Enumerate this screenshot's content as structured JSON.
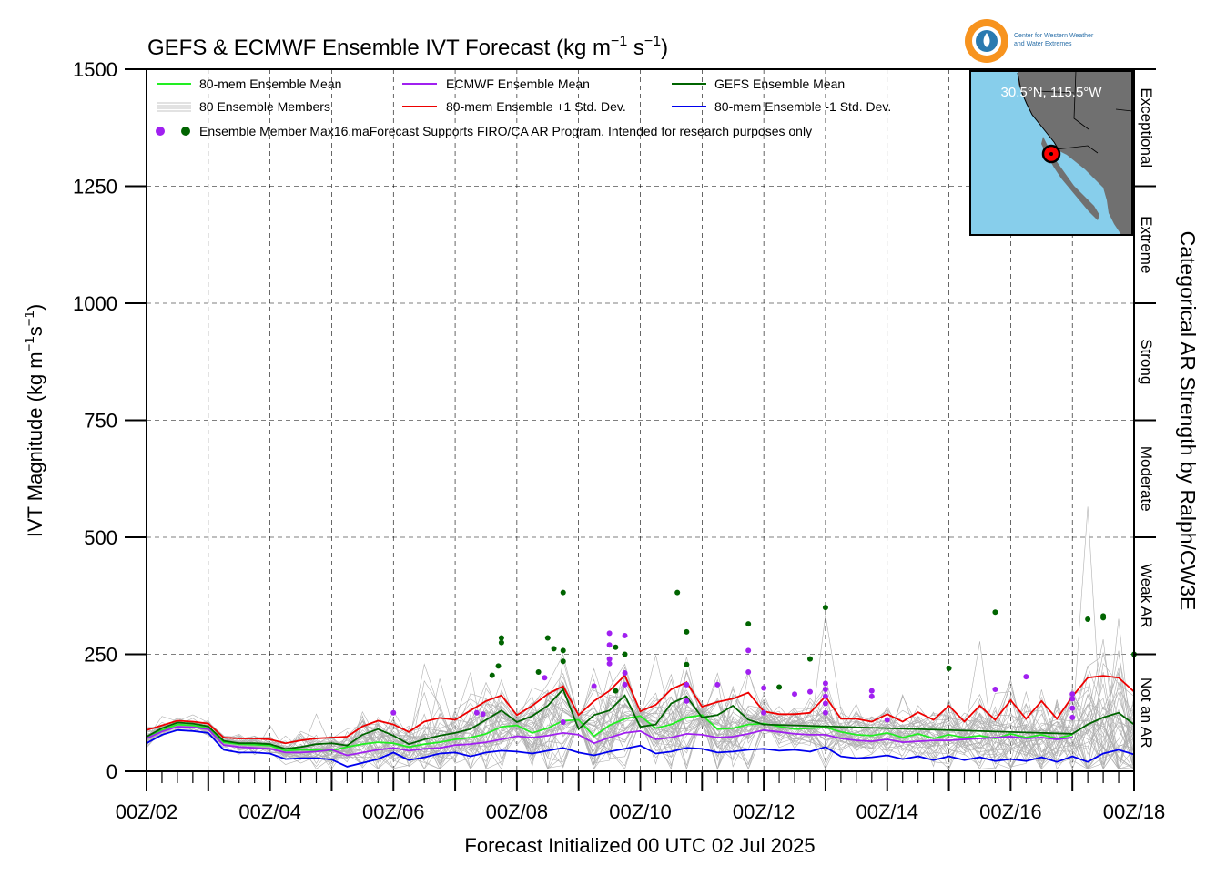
{
  "chart_data": {
    "type": "line",
    "title": "GEFS & ECMWF Ensemble IVT Forecast (kg m⁻¹ s⁻¹)",
    "title_parts": {
      "main": "GEFS & ECMWF Ensemble IVT Forecast (kg m",
      "sup1": "−1",
      "mid": " s",
      "sup2": "−1",
      "end": ")"
    },
    "ylabel": "IVT Magnitude (kg m⁻¹s⁻¹)",
    "ylabel_parts": {
      "main": "IVT Magnitude (kg m",
      "sup1": "−1",
      "mid": "s",
      "sup2": "−1",
      "end": ")"
    },
    "xlabel": "Forecast Initialized 00 UTC 02 Jul 2025",
    "right_label": "Categorical AR Strength by Ralph/CW3E",
    "ylim": [
      0,
      1500
    ],
    "xlim_days": [
      2,
      18
    ],
    "y_ticks": [
      0,
      250,
      500,
      750,
      1000,
      1250,
      1500
    ],
    "x_tick_labels": [
      "00Z/02",
      "00Z/04",
      "00Z/06",
      "00Z/08",
      "00Z/10",
      "00Z/12",
      "00Z/14",
      "00Z/16",
      "00Z/18"
    ],
    "x_tick_days": [
      2,
      4,
      6,
      8,
      10,
      12,
      14,
      16,
      18
    ],
    "grid": true,
    "categories": [
      {
        "label": "Not an AR",
        "from": 0,
        "to": 250
      },
      {
        "label": "Weak AR",
        "from": 250,
        "to": 500
      },
      {
        "label": "Moderate",
        "from": 500,
        "to": 750
      },
      {
        "label": "Strong",
        "from": 750,
        "to": 1000
      },
      {
        "label": "Extreme",
        "from": 1000,
        "to": 1250
      },
      {
        "label": "Exceptional",
        "from": 1250,
        "to": 1500
      }
    ],
    "legend": [
      {
        "label": "80-mem Ensemble Mean",
        "color": "#22ee22"
      },
      {
        "label": "ECMWF Ensemble Mean",
        "color": "#a020f0"
      },
      {
        "label": "GEFS Ensemble Mean",
        "color": "#006400"
      },
      {
        "label": "80 Ensemble Members",
        "color": "#b0b0b0"
      },
      {
        "label": "80-mem Ensemble +1 Std. Dev.",
        "color": "#ee0000"
      },
      {
        "label": "80-mem Ensemble -1 Std. Dev.",
        "color": "#0000ee"
      },
      {
        "label": "Ensemble Member Max",
        "color": "#006400"
      }
    ],
    "note": "16.maForecast Supports FIRO/CA AR Program. Intended for research purposes only",
    "series": [
      {
        "name": "80-mem Ensemble Mean",
        "color": "#22ee22",
        "x": [
          2,
          2.25,
          2.5,
          2.75,
          3,
          3.25,
          3.5,
          3.75,
          4,
          4.25,
          4.5,
          4.75,
          5,
          5.25,
          5.5,
          5.75,
          6,
          6.25,
          6.5,
          6.75,
          7,
          7.25,
          7.5,
          7.75,
          8,
          8.25,
          8.5,
          8.75,
          9,
          9.25,
          9.5,
          9.75,
          10,
          10.25,
          10.5,
          10.75,
          11,
          11.25,
          11.5,
          11.75,
          12,
          12.25,
          12.5,
          12.75,
          13,
          13.25,
          13.5,
          13.75,
          14,
          14.25,
          14.5,
          14.75,
          15,
          15.25,
          15.5,
          15.75,
          16,
          16.25,
          16.5,
          16.75,
          17
        ],
        "values": [
          72,
          88,
          100,
          98,
          92,
          62,
          58,
          57,
          55,
          44,
          46,
          45,
          44,
          52,
          58,
          62,
          60,
          52,
          58,
          62,
          68,
          72,
          80,
          95,
          98,
          82,
          92,
          108,
          110,
          75,
          98,
          112,
          118,
          92,
          100,
          115,
          120,
          90,
          92,
          100,
          102,
          96,
          90,
          92,
          94,
          84,
          78,
          76,
          82,
          72,
          80,
          70,
          78,
          72,
          76,
          70,
          80,
          72,
          78,
          70,
          78
        ]
      },
      {
        "name": "ECMWF Ensemble Mean",
        "color": "#a020f0",
        "x": [
          2,
          2.25,
          2.5,
          2.75,
          3,
          3.25,
          3.5,
          3.75,
          4,
          4.25,
          4.5,
          4.75,
          5,
          5.25,
          5.5,
          5.75,
          6,
          6.25,
          6.5,
          6.75,
          7,
          7.25,
          7.5,
          7.75,
          8,
          8.25,
          8.5,
          8.75,
          9,
          9.25,
          9.5,
          9.75,
          10,
          10.25,
          10.5,
          10.75,
          11,
          11.25,
          11.5,
          11.75,
          12,
          12.25,
          12.5,
          12.75,
          13,
          13.25,
          13.5,
          13.75,
          14,
          14.25,
          14.5,
          14.75,
          15,
          15.25,
          15.5,
          15.75,
          16,
          16.25,
          16.5,
          16.75,
          17
        ],
        "values": [
          70,
          85,
          95,
          94,
          90,
          56,
          52,
          50,
          48,
          40,
          40,
          42,
          46,
          34,
          40,
          46,
          50,
          44,
          48,
          50,
          56,
          58,
          62,
          68,
          75,
          72,
          76,
          82,
          78,
          60,
          72,
          82,
          86,
          68,
          72,
          80,
          78,
          72,
          74,
          80,
          88,
          84,
          80,
          78,
          78,
          70,
          66,
          64,
          68,
          62,
          64,
          66,
          66,
          68,
          70,
          72,
          74,
          70,
          72,
          68,
          72
        ]
      },
      {
        "name": "GEFS Ensemble Mean",
        "color": "#006400",
        "x": [
          2,
          2.25,
          2.5,
          2.75,
          3,
          3.25,
          3.5,
          3.75,
          4,
          4.25,
          4.5,
          4.75,
          5,
          5.25,
          5.5,
          5.75,
          6,
          6.25,
          6.5,
          6.75,
          7,
          7.25,
          7.5,
          7.75,
          8,
          8.25,
          8.5,
          8.75,
          9,
          9.25,
          9.5,
          9.75,
          10,
          10.25,
          10.5,
          10.75,
          11,
          11.25,
          11.5,
          11.75,
          12,
          17,
          17.25,
          17.5,
          17.75,
          18
        ],
        "values": [
          74,
          92,
          104,
          102,
          96,
          65,
          60,
          60,
          58,
          48,
          52,
          58,
          60,
          55,
          78,
          90,
          76,
          58,
          68,
          76,
          82,
          90,
          110,
          130,
          105,
          118,
          140,
          175,
          90,
          120,
          130,
          162,
          95,
          100,
          145,
          160,
          115,
          120,
          140,
          110,
          100,
          80,
          100,
          115,
          125,
          100
        ]
      },
      {
        "name": "80-mem Ensemble +1 Std. Dev.",
        "color": "#ee0000",
        "x": [
          2,
          2.25,
          2.5,
          2.75,
          3,
          3.25,
          3.5,
          3.75,
          4,
          4.25,
          4.5,
          4.75,
          5,
          5.25,
          5.5,
          5.75,
          6,
          6.25,
          6.5,
          6.75,
          7,
          7.25,
          7.5,
          7.75,
          8,
          8.25,
          8.5,
          8.75,
          9,
          9.25,
          9.5,
          9.75,
          10,
          10.25,
          10.5,
          10.75,
          11,
          11.25,
          11.5,
          11.75,
          12,
          12.25,
          12.5,
          12.75,
          13,
          13.25,
          13.5,
          13.75,
          14,
          14.25,
          14.5,
          14.75,
          15,
          15.25,
          15.5,
          15.75,
          16,
          16.25,
          16.5,
          16.75,
          17,
          17.25,
          17.5,
          17.75,
          18
        ],
        "values": [
          88,
          98,
          108,
          106,
          102,
          72,
          70,
          70,
          68,
          60,
          66,
          70,
          72,
          74,
          96,
          108,
          100,
          84,
          106,
          114,
          110,
          130,
          150,
          162,
          120,
          140,
          165,
          182,
          120,
          150,
          172,
          205,
          128,
          142,
          175,
          190,
          138,
          148,
          155,
          168,
          128,
          122,
          122,
          125,
          160,
          112,
          112,
          106,
          122,
          106,
          126,
          110,
          140,
          106,
          140,
          110,
          152,
          112,
          150,
          112,
          160,
          200,
          204,
          200,
          170
        ]
      },
      {
        "name": "80-mem Ensemble -1 Std. Dev.",
        "color": "#0000ee",
        "x": [
          2,
          2.25,
          2.5,
          2.75,
          3,
          3.25,
          3.5,
          3.75,
          4,
          4.25,
          4.5,
          4.75,
          5,
          5.25,
          5.5,
          5.75,
          6,
          6.25,
          6.5,
          6.75,
          7,
          7.25,
          7.5,
          7.75,
          8,
          8.25,
          8.5,
          8.75,
          9,
          9.25,
          9.5,
          9.75,
          10,
          10.25,
          10.5,
          10.75,
          11,
          11.25,
          11.5,
          11.75,
          12,
          12.25,
          12.5,
          12.75,
          13,
          13.25,
          13.5,
          13.75,
          14,
          14.25,
          14.5,
          14.75,
          15,
          15.25,
          15.5,
          15.75,
          16,
          16.25,
          16.5,
          16.75,
          17,
          17.25,
          17.5,
          17.75,
          18
        ],
        "values": [
          60,
          78,
          88,
          86,
          82,
          46,
          40,
          40,
          38,
          26,
          28,
          28,
          25,
          10,
          18,
          26,
          40,
          24,
          30,
          38,
          40,
          32,
          40,
          44,
          42,
          38,
          44,
          50,
          40,
          34,
          42,
          48,
          55,
          38,
          42,
          50,
          48,
          40,
          42,
          46,
          48,
          44,
          46,
          42,
          52,
          32,
          28,
          30,
          34,
          26,
          32,
          24,
          32,
          24,
          30,
          22,
          26,
          22,
          30,
          20,
          32,
          20,
          38,
          46,
          36
        ]
      }
    ],
    "member_max_points": [
      {
        "x": 6.0,
        "y": 125,
        "model": "ECMWF"
      },
      {
        "x": 7.35,
        "y": 125,
        "model": "ECMWF"
      },
      {
        "x": 7.45,
        "y": 122,
        "model": "ECMWF"
      },
      {
        "x": 7.6,
        "y": 205,
        "model": "GEFS"
      },
      {
        "x": 7.7,
        "y": 225,
        "model": "GEFS"
      },
      {
        "x": 7.75,
        "y": 275,
        "model": "GEFS"
      },
      {
        "x": 7.75,
        "y": 285,
        "model": "GEFS"
      },
      {
        "x": 8.35,
        "y": 212,
        "model": "GEFS"
      },
      {
        "x": 8.45,
        "y": 200,
        "model": "ECMWF"
      },
      {
        "x": 8.5,
        "y": 285,
        "model": "GEFS"
      },
      {
        "x": 8.6,
        "y": 262,
        "model": "GEFS"
      },
      {
        "x": 8.75,
        "y": 382,
        "model": "GEFS"
      },
      {
        "x": 8.75,
        "y": 258,
        "model": "GEFS"
      },
      {
        "x": 8.75,
        "y": 235,
        "model": "GEFS"
      },
      {
        "x": 8.75,
        "y": 105,
        "model": "ECMWF"
      },
      {
        "x": 9.25,
        "y": 182,
        "model": "ECMWF"
      },
      {
        "x": 9.5,
        "y": 295,
        "model": "ECMWF"
      },
      {
        "x": 9.5,
        "y": 270,
        "model": "ECMWF"
      },
      {
        "x": 9.5,
        "y": 240,
        "model": "ECMWF"
      },
      {
        "x": 9.5,
        "y": 230,
        "model": "ECMWF"
      },
      {
        "x": 9.6,
        "y": 265,
        "model": "GEFS"
      },
      {
        "x": 9.6,
        "y": 172,
        "model": "GEFS"
      },
      {
        "x": 9.75,
        "y": 290,
        "model": "ECMWF"
      },
      {
        "x": 9.75,
        "y": 250,
        "model": "GEFS"
      },
      {
        "x": 9.75,
        "y": 210,
        "model": "ECMWF"
      },
      {
        "x": 9.75,
        "y": 185,
        "model": "ECMWF"
      },
      {
        "x": 10.6,
        "y": 382,
        "model": "GEFS"
      },
      {
        "x": 10.75,
        "y": 298,
        "model": "GEFS"
      },
      {
        "x": 10.75,
        "y": 228,
        "model": "GEFS"
      },
      {
        "x": 10.75,
        "y": 185,
        "model": "ECMWF"
      },
      {
        "x": 10.75,
        "y": 150,
        "model": "ECMWF"
      },
      {
        "x": 11.25,
        "y": 185,
        "model": "ECMWF"
      },
      {
        "x": 11.75,
        "y": 315,
        "model": "GEFS"
      },
      {
        "x": 11.75,
        "y": 258,
        "model": "ECMWF"
      },
      {
        "x": 11.75,
        "y": 212,
        "model": "ECMWF"
      },
      {
        "x": 12.0,
        "y": 178,
        "model": "ECMWF"
      },
      {
        "x": 12.0,
        "y": 125,
        "model": "ECMWF"
      },
      {
        "x": 12.25,
        "y": 180,
        "model": "GEFS"
      },
      {
        "x": 12.5,
        "y": 165,
        "model": "ECMWF"
      },
      {
        "x": 12.75,
        "y": 240,
        "model": "GEFS"
      },
      {
        "x": 12.75,
        "y": 170,
        "model": "ECMWF"
      },
      {
        "x": 13.0,
        "y": 350,
        "model": "GEFS"
      },
      {
        "x": 13.0,
        "y": 188,
        "model": "ECMWF"
      },
      {
        "x": 13.0,
        "y": 175,
        "model": "ECMWF"
      },
      {
        "x": 13.0,
        "y": 160,
        "model": "ECMWF"
      },
      {
        "x": 13.0,
        "y": 145,
        "model": "ECMWF"
      },
      {
        "x": 13.0,
        "y": 125,
        "model": "ECMWF"
      },
      {
        "x": 13.75,
        "y": 172,
        "model": "ECMWF"
      },
      {
        "x": 13.75,
        "y": 160,
        "model": "ECMWF"
      },
      {
        "x": 14.0,
        "y": 110,
        "model": "ECMWF"
      },
      {
        "x": 15.0,
        "y": 220,
        "model": "GEFS"
      },
      {
        "x": 15.75,
        "y": 340,
        "model": "GEFS"
      },
      {
        "x": 15.75,
        "y": 175,
        "model": "ECMWF"
      },
      {
        "x": 16.25,
        "y": 202,
        "model": "ECMWF"
      },
      {
        "x": 17.0,
        "y": 165,
        "model": "ECMWF"
      },
      {
        "x": 17.0,
        "y": 155,
        "model": "ECMWF"
      },
      {
        "x": 17.0,
        "y": 135,
        "model": "ECMWF"
      },
      {
        "x": 17.0,
        "y": 115,
        "model": "ECMWF"
      },
      {
        "x": 17.25,
        "y": 325,
        "model": "GEFS"
      },
      {
        "x": 17.5,
        "y": 332,
        "model": "GEFS"
      },
      {
        "x": 17.5,
        "y": 328,
        "model": "GEFS"
      },
      {
        "x": 18.0,
        "y": 250,
        "model": "GEFS"
      }
    ]
  },
  "inset_map": {
    "location_label": "30.5°N, 115.5°W",
    "land_color": "#707070",
    "ocean_color": "#87ceeb",
    "marker_color": "#ff0000"
  },
  "logo": {
    "line1": "Center for Western Weather",
    "line2": "and Water Extremes",
    "icon": "cw3e-water-drop-logo"
  },
  "colors": {
    "members": "#b0b0b0",
    "ecmwf_dot": "#a020f0",
    "gefs_dot": "#006400"
  }
}
